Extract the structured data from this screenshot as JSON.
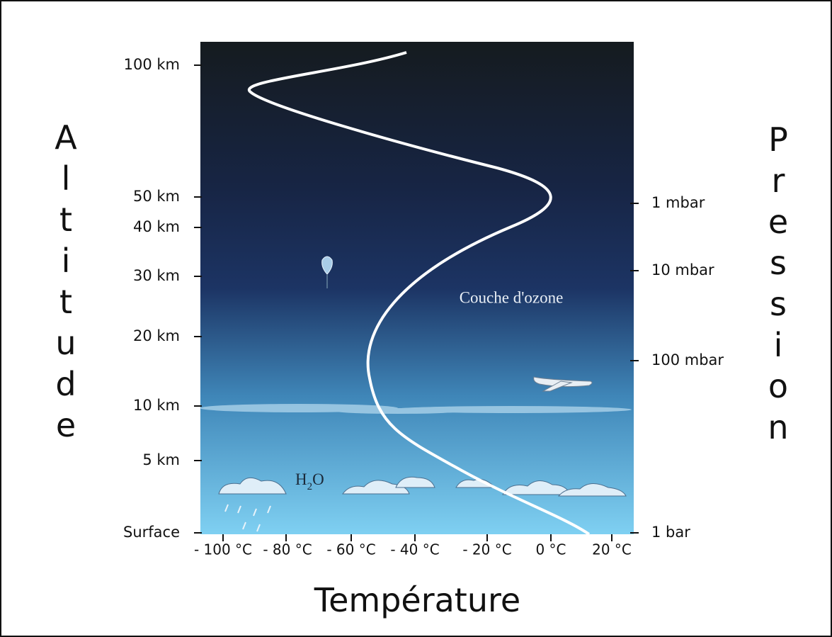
{
  "left_title": "Altitude",
  "right_title": "Pression",
  "bottom_title": "Température",
  "altitude_labels": [
    "100 km",
    "50 km",
    "40 km",
    "30 km",
    "20 km",
    "10 km",
    "5 km",
    "Surface"
  ],
  "pressure_labels": [
    "1 mbar",
    "10 mbar",
    "100 mbar",
    "1 bar"
  ],
  "temperature_labels": [
    "- 100 °C",
    "- 80 °C",
    "- 60 °C",
    "- 40 °C",
    "- 20 °C",
    "0 °C",
    "20 °C"
  ],
  "annotations": {
    "ozone": "Couche d'ozone",
    "water": [
      "H",
      "2",
      "O"
    ]
  }
}
